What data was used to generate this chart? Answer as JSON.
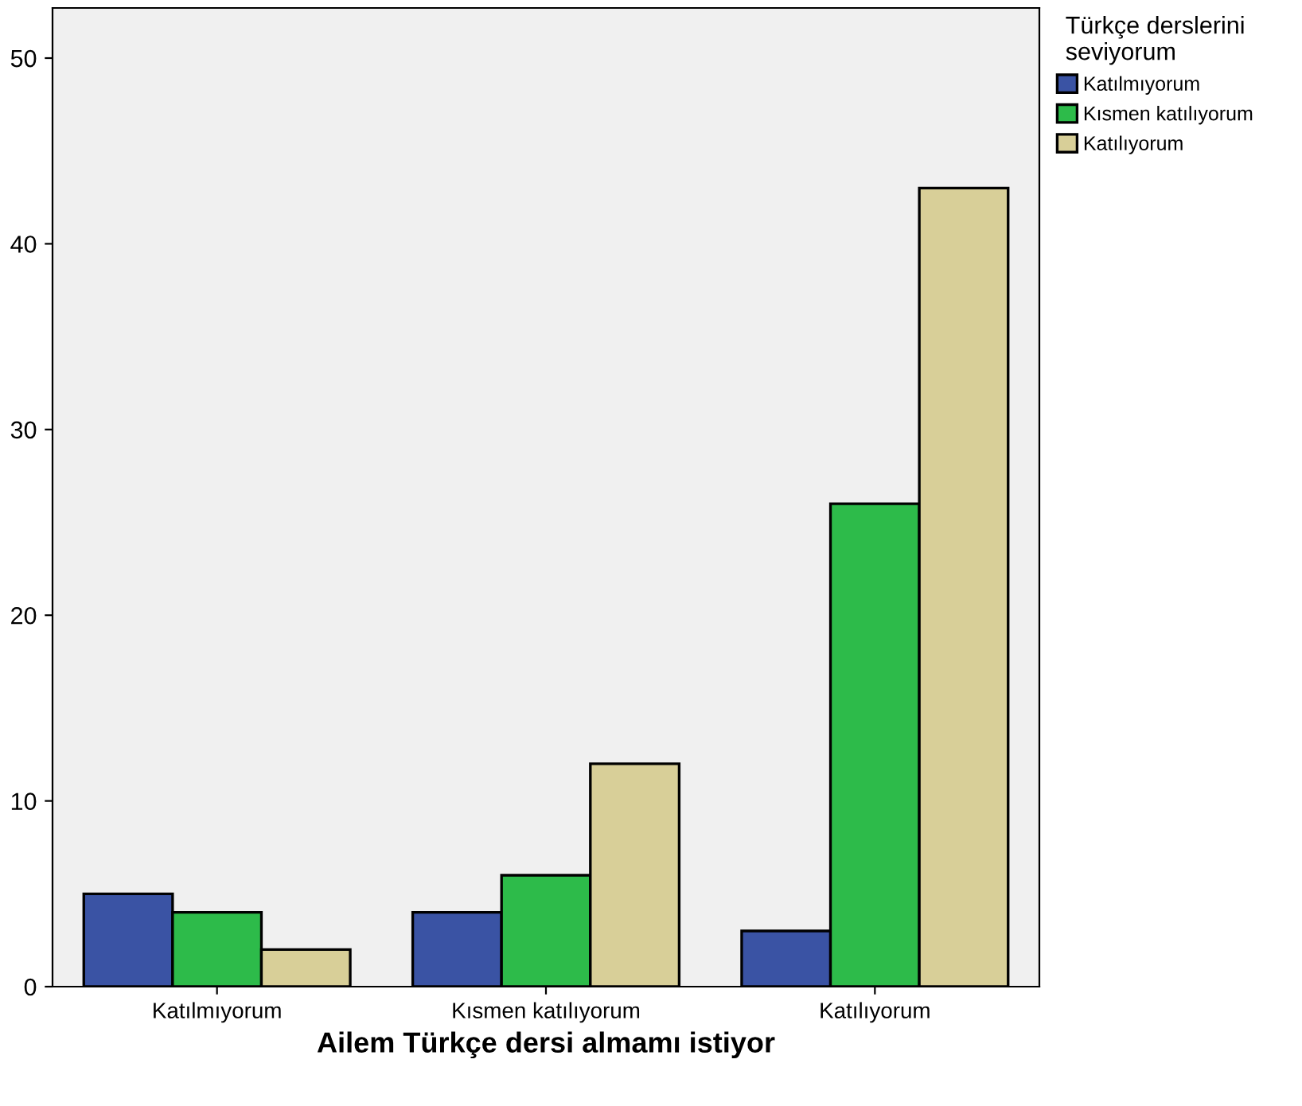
{
  "chart_data": {
    "type": "bar",
    "xlabel": "Ailem Türkçe dersi almamı istiyor",
    "legend_title": "Türkçe derslerini\nseviyorum",
    "categories": [
      "Katılmıyorum",
      "Kısmen katılıyorum",
      "Katılıyorum"
    ],
    "series": [
      {
        "name": "Katılmıyorum",
        "color": "#3a53a4",
        "values": [
          5,
          4,
          3
        ]
      },
      {
        "name": "Kısmen katılıyorum",
        "color": "#2dbb4a",
        "values": [
          4,
          6,
          26
        ]
      },
      {
        "name": "Katılıyorum",
        "color": "#d8cf98",
        "values": [
          2,
          12,
          43
        ]
      }
    ],
    "ylim": [
      0,
      52.7
    ],
    "yticks": [
      0,
      10,
      20,
      30,
      40,
      50
    ],
    "grid": false,
    "legend": "top right"
  }
}
